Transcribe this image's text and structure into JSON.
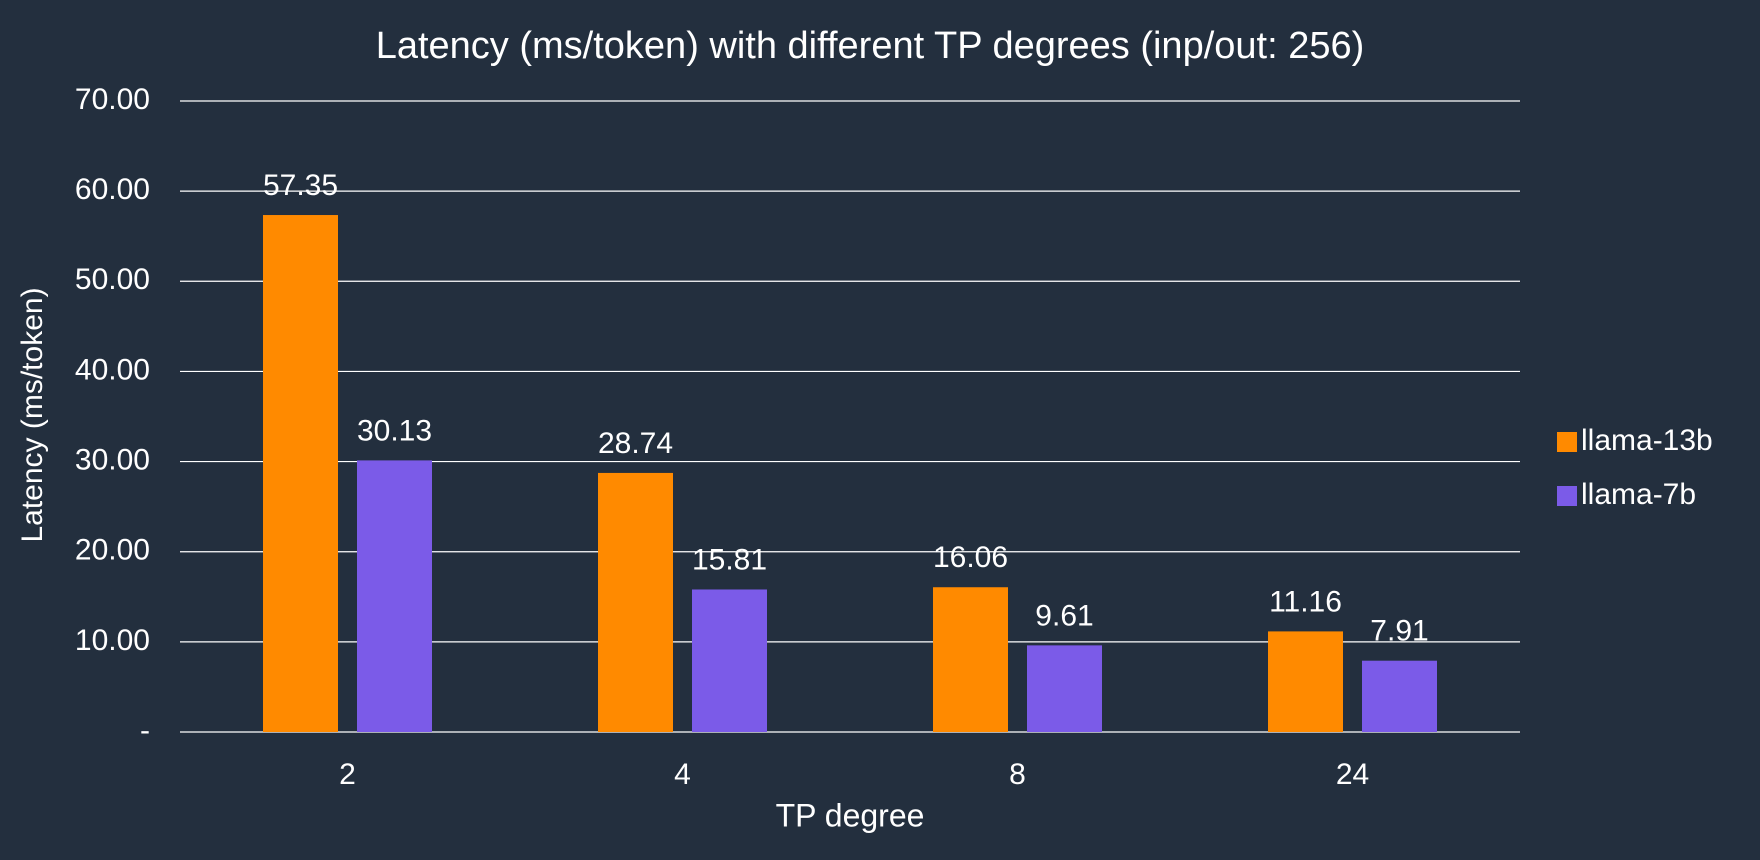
{
  "chart_data": {
    "type": "bar",
    "title": "Latency (ms/token) with different TP degrees (inp/out: 256)",
    "x_label": "TP degree",
    "y_label": "Latency (ms/token)",
    "categories": [
      "2",
      "4",
      "8",
      "24"
    ],
    "series": [
      {
        "name": "llama-13b",
        "color": "#ff8a00",
        "values": [
          57.35,
          28.74,
          16.06,
          11.16
        ]
      },
      {
        "name": "llama-7b",
        "color": "#7b5be8",
        "values": [
          30.13,
          15.81,
          9.61,
          7.91
        ]
      }
    ],
    "ylim": [
      0,
      70
    ],
    "yticks": [
      {
        "value": 0,
        "label": "-"
      },
      {
        "value": 10,
        "label": "10.00"
      },
      {
        "value": 20,
        "label": "20.00"
      },
      {
        "value": 30,
        "label": "30.00"
      },
      {
        "value": 40,
        "label": "40.00"
      },
      {
        "value": 50,
        "label": "50.00"
      },
      {
        "value": 60,
        "label": "60.00"
      },
      {
        "value": 70,
        "label": "70.00"
      }
    ],
    "grid": true,
    "legend": "right"
  }
}
